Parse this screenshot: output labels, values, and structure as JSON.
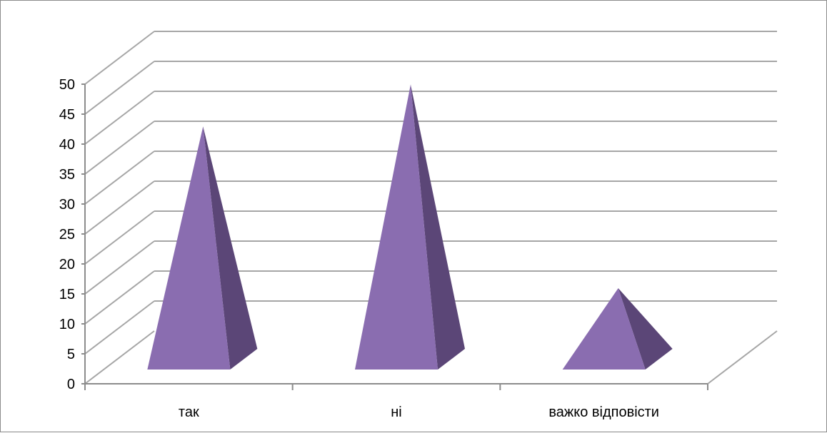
{
  "chart_data": {
    "type": "bar",
    "bar_shape": "pyramid-3d",
    "categories": [
      "так",
      "ні",
      "важко відповісти"
    ],
    "values": [
      42,
      49,
      15
    ],
    "ylim": [
      0,
      50
    ],
    "ytick_step": 5,
    "yticks": [
      "0",
      "5",
      "10",
      "15",
      "20",
      "25",
      "30",
      "35",
      "40",
      "45",
      "50"
    ],
    "grid": true,
    "legend": "none",
    "title": "",
    "xlabel": "",
    "ylabel": "",
    "colors": {
      "front": "#8a6db0",
      "side": "#5b4677",
      "grid": "#a6a6a6",
      "axis": "#8c8c8c"
    }
  }
}
